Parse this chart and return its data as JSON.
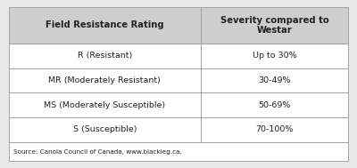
{
  "col1_header": "Field Resistance Rating",
  "col2_header": "Severity compared to\nWestar",
  "rows": [
    [
      "R (Resistant)",
      "Up to 30%"
    ],
    [
      "MR (Moderately Resistant)",
      "30-49%"
    ],
    [
      "MS (Moderately Susceptible)",
      "50-69%"
    ],
    [
      "S (Susceptible)",
      "70-100%"
    ]
  ],
  "source_text": "Source: Canola Council of Canada, www.blackleg.ca.",
  "header_bg": "#cecece",
  "row_bg": "#ffffff",
  "border_color": "#999999",
  "text_color": "#222222",
  "source_bg": "#ffffff",
  "col_split": 0.565,
  "outer_bg": "#e8e8e8"
}
